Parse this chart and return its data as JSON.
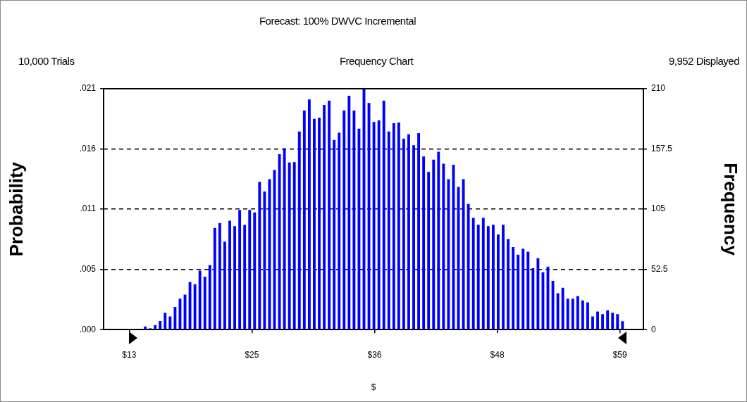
{
  "chart_data": {
    "type": "histogram",
    "title": "Forecast: 100% DWVC Incremental",
    "subtitle": "Frequency Chart",
    "annotations": [
      "10,000 Trials",
      "9,952 Displayed"
    ],
    "xlabel": "$",
    "ylabel": "Probability",
    "y2label": "Frequency",
    "bins": [
      14.27,
      14.736,
      15.202,
      15.668,
      16.134,
      16.6,
      17.066,
      17.532,
      17.998,
      18.464,
      18.93,
      19.396,
      19.862,
      20.328,
      20.794,
      21.26,
      21.726,
      22.192,
      22.658,
      23.124,
      23.59,
      24.056,
      24.522,
      24.988,
      25.454,
      25.92,
      26.386,
      26.852,
      27.318,
      27.784,
      28.25,
      28.716,
      29.182,
      29.648,
      30.114,
      30.58,
      31.046,
      31.512,
      31.978,
      32.444,
      32.91,
      33.376,
      33.842,
      34.308,
      34.774,
      35.24,
      35.706,
      36.172,
      36.638,
      37.104,
      37.57,
      38.036,
      38.502,
      38.968,
      39.434,
      39.9,
      40.366,
      40.832,
      41.298,
      41.764,
      42.23,
      42.696,
      43.162,
      43.628,
      44.094,
      44.56,
      45.026,
      45.492,
      45.958,
      46.424,
      46.89,
      47.356,
      47.822,
      48.288,
      48.754,
      49.22,
      49.686,
      50.152,
      50.618,
      51.084,
      51.55,
      52.016,
      52.482,
      52.948,
      53.414,
      53.88,
      54.346,
      54.812,
      55.278,
      55.744,
      56.21,
      56.676,
      57.142,
      57.608,
      58.074,
      58.54,
      59.006,
      59.472
    ],
    "series": [
      {
        "axis": "y2",
        "color": "#0000ff",
        "values": [
          2.7,
          1.2,
          3.9,
          7.5,
          14.7,
          11.4,
          19.7,
          26.9,
          30.5,
          41.5,
          39.6,
          51.4,
          46.2,
          56.2,
          88.7,
          92.9,
          76.7,
          94.9,
          90.2,
          104.3,
          91.2,
          104.3,
          102.2,
          128.9,
          120.4,
          131.2,
          139.1,
          153,
          158.2,
          145.7,
          146.1,
          172.7,
          190.9,
          200.7,
          183.7,
          184.7,
          195.9,
          199.6,
          165.4,
          171.6,
          190.9,
          203.8,
          190.9,
          175.2,
          210,
          197.6,
          181,
          182.4,
          199.6,
          172.7,
          179.9,
          180.6,
          166.5,
          170.2,
          160.7,
          171.4,
          150.9,
          137.4,
          148.2,
          155.1,
          144.7,
          131.2,
          143.7,
          124.4,
          131.2,
          109.5,
          97.4,
          91.4,
          97.4,
          90.2,
          91.4,
          82.9,
          91.4,
          79,
          71.9,
          65.3,
          70.5,
          68,
          53.5,
          62.2,
          50,
          54.9,
          42.5,
          31.7,
          36.5,
          26.9,
          26.9,
          29.2,
          25.5,
          23.8,
          11.4,
          15.8,
          13.5,
          16.8,
          14.7,
          13.5,
          7.3
        ]
      }
    ],
    "xlim": [
      10.6,
      61.2
    ],
    "xticks": [
      {
        "value": 13,
        "label": "$13"
      },
      {
        "value": 24.5,
        "label": "$25"
      },
      {
        "value": 36,
        "label": "$36"
      },
      {
        "value": 47.5,
        "label": "$48"
      },
      {
        "value": 59,
        "label": "$59"
      }
    ],
    "ylim": [
      0,
      0.021
    ],
    "yticks": [
      {
        "value": 0,
        "label": ".000"
      },
      {
        "value": 0.00525,
        "label": ".005"
      },
      {
        "value": 0.0105,
        "label": ".011"
      },
      {
        "value": 0.01575,
        "label": ".016"
      },
      {
        "value": 0.021,
        "label": ".021"
      }
    ],
    "y2lim": [
      0,
      210
    ],
    "y2ticks": [
      0,
      52.5,
      105,
      157.5,
      210
    ],
    "grid": "y",
    "line_style": "dashed",
    "legend": false
  }
}
